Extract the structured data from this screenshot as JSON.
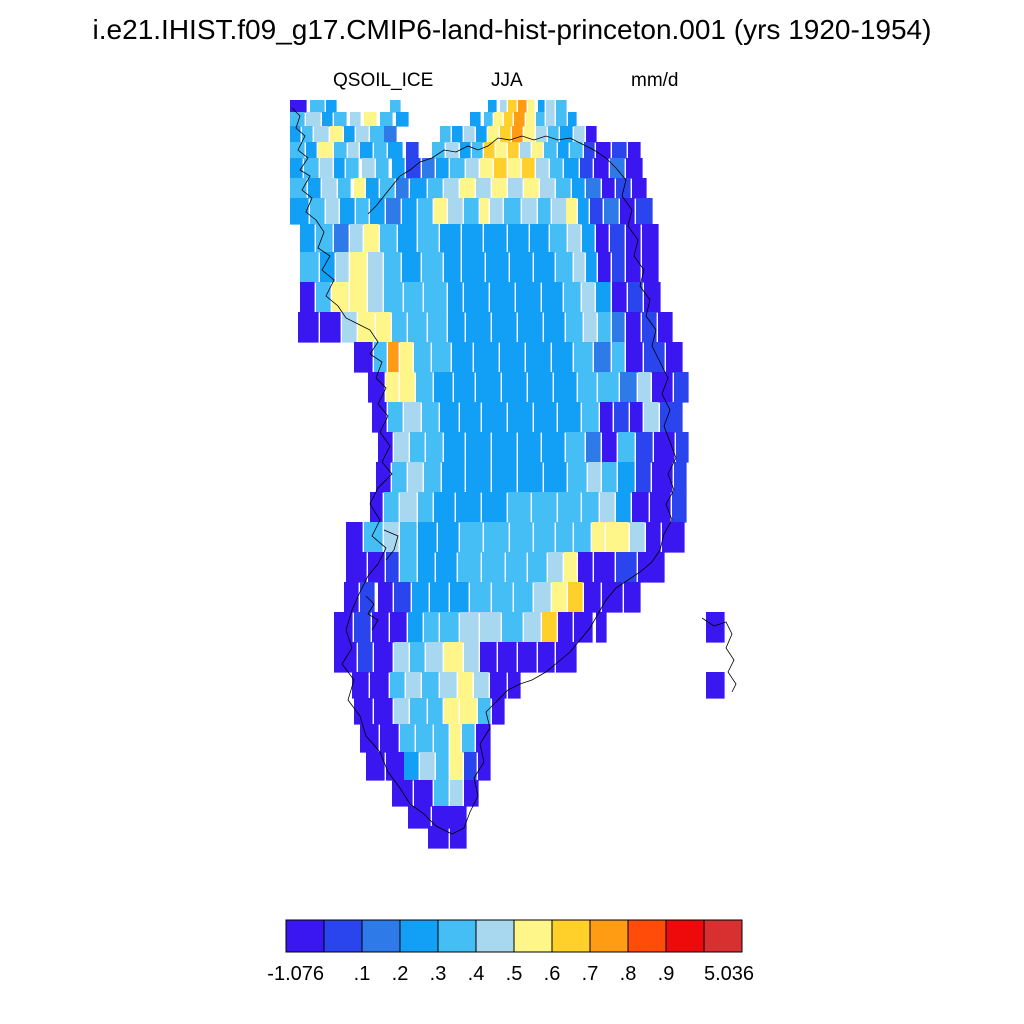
{
  "title": "i.e21.IHIST.f09_g17.CMIP6-land-hist-princeton.001 (yrs 1920-1954)",
  "variable": "QSOIL_ICE",
  "season": "JJA",
  "units": "mm/d",
  "map": {
    "region": "Greenland",
    "palette": {
      "0": "#3a16f0",
      "1": "#2a44ee",
      "2": "#2e7ae8",
      "3": "#12a0f6",
      "4": "#45bef6",
      "5": "#a8d8f0",
      "6": "#fff68a",
      "7": "#ffd02a",
      "8": "#ff9c14",
      "9": "#ff4c08",
      "10": "#ee0a0a",
      "11": "#d83030"
    }
  },
  "colorbar": {
    "colors": [
      "#3a16f0",
      "#2a44ee",
      "#2e7ae8",
      "#12a0f6",
      "#45bef6",
      "#a8d8f0",
      "#fff68a",
      "#ffd02a",
      "#ff9c14",
      "#ff4c08",
      "#ee0a0a",
      "#d83030"
    ],
    "labels": [
      "-1.076",
      ".1",
      ".2",
      ".3",
      ".4",
      ".5",
      ".6",
      ".7",
      ".8",
      ".9",
      "5.036"
    ]
  }
}
